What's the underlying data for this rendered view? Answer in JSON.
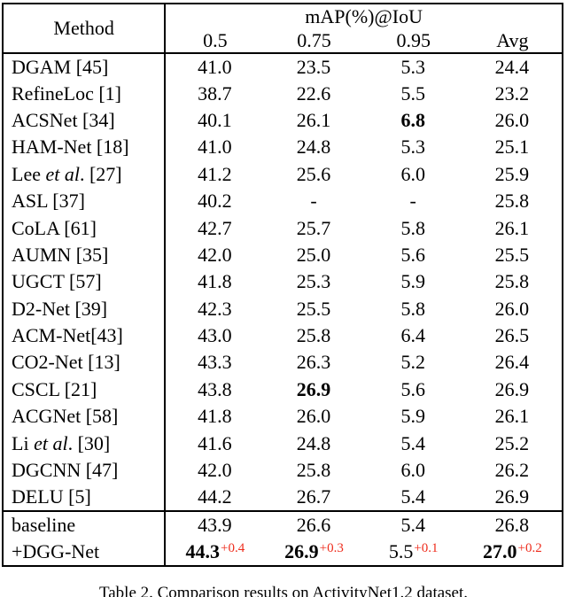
{
  "colors": {
    "accent_red": "#ee2c1c",
    "text": "#000000",
    "background": "#ffffff"
  },
  "caption": "Table 2. Comparison results on ActivityNet1.2 dataset.",
  "table": {
    "header": {
      "method": "Method",
      "group": "mAP(%)@IoU",
      "cols": [
        "0.5",
        "0.75",
        "0.95",
        "Avg"
      ]
    },
    "rows": [
      {
        "pre": "DGAM [45]",
        "values": [
          "41.0",
          "23.5",
          "5.3",
          "24.4"
        ]
      },
      {
        "pre": "RefineLoc [1]",
        "values": [
          "38.7",
          "22.6",
          "5.5",
          "23.2"
        ]
      },
      {
        "pre": "ACSNet [34]",
        "values": [
          "40.1",
          "26.1",
          "6.8",
          "26.0"
        ],
        "bold": [
          false,
          false,
          true,
          false
        ]
      },
      {
        "pre": "HAM-Net [18]",
        "values": [
          "41.0",
          "24.8",
          "5.3",
          "25.1"
        ]
      },
      {
        "pre": "Lee ",
        "it": "et al",
        "post": ". [27]",
        "values": [
          "41.2",
          "25.6",
          "6.0",
          "25.9"
        ]
      },
      {
        "pre": "ASL [37]",
        "values": [
          "40.2",
          "-",
          "-",
          "25.8"
        ]
      },
      {
        "pre": "CoLA [61]",
        "values": [
          "42.7",
          "25.7",
          "5.8",
          "26.1"
        ]
      },
      {
        "pre": "AUMN [35]",
        "values": [
          "42.0",
          "25.0",
          "5.6",
          "25.5"
        ]
      },
      {
        "pre": "UGCT [57]",
        "values": [
          "41.8",
          "25.3",
          "5.9",
          "25.8"
        ]
      },
      {
        "pre": "D2-Net [39]",
        "values": [
          "42.3",
          "25.5",
          "5.8",
          "26.0"
        ]
      },
      {
        "pre": "ACM-Net[43]",
        "values": [
          "43.0",
          "25.8",
          "6.4",
          "26.5"
        ]
      },
      {
        "pre": "CO2-Net [13]",
        "values": [
          "43.3",
          "26.3",
          "5.2",
          "26.4"
        ]
      },
      {
        "pre": "CSCL [21]",
        "values": [
          "43.8",
          "26.9",
          "5.6",
          "26.9"
        ],
        "bold": [
          false,
          true,
          false,
          false
        ]
      },
      {
        "pre": "ACGNet [58]",
        "values": [
          "41.8",
          "26.0",
          "5.9",
          "26.1"
        ]
      },
      {
        "pre": "Li ",
        "it": "et al",
        "post": ". [30]",
        "values": [
          "41.6",
          "24.8",
          "5.4",
          "25.2"
        ]
      },
      {
        "pre": "DGCNN [47]",
        "values": [
          "42.0",
          "25.8",
          "6.0",
          "26.2"
        ]
      },
      {
        "pre": "DELU [5]",
        "values": [
          "44.2",
          "26.7",
          "5.4",
          "26.9"
        ]
      },
      {
        "pre": "baseline",
        "values": [
          "43.9",
          "26.6",
          "5.4",
          "26.8"
        ]
      },
      {
        "pre": "+DGG-Net",
        "values": [
          "44.3",
          "26.9",
          "5.5",
          "27.0"
        ],
        "sups": [
          "+0.4",
          "+0.3",
          "+0.1",
          "+0.2"
        ],
        "bold": [
          true,
          true,
          false,
          true
        ]
      }
    ]
  }
}
